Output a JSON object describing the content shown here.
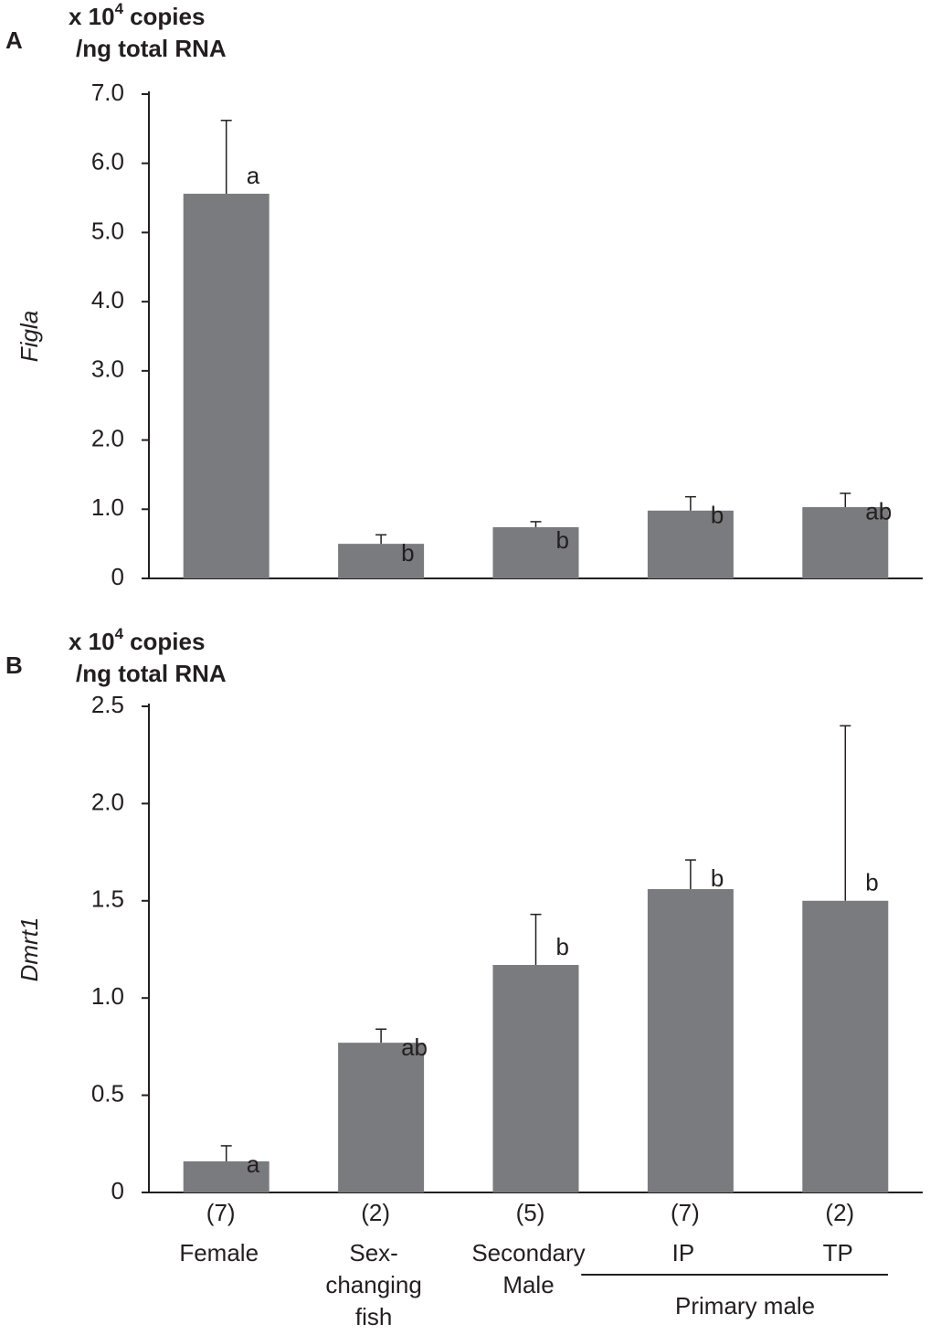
{
  "chart_data": [
    {
      "type": "bar",
      "panel": "A",
      "unit_label": {
        "prefix": "x 10",
        "superscript": "4",
        "suffix": "copies",
        "line2": "/ng total RNA"
      },
      "y_label": "Figla",
      "values": [
        5.56,
        0.5,
        0.74,
        0.98,
        1.03
      ],
      "errors": [
        1.06,
        0.13,
        0.08,
        0.2,
        0.2
      ],
      "letters": [
        "a",
        "b",
        "b",
        "b",
        "ab"
      ],
      "color": "#7a7b7f",
      "ylim": [
        0,
        7
      ],
      "yticks": [
        0,
        {
          "value": 1,
          "label": "1.0"
        },
        {
          "value": 2,
          "label": "2.0"
        },
        {
          "value": 3,
          "label": "3.0"
        },
        {
          "value": 4,
          "label": "4.0"
        },
        {
          "value": 5,
          "label": "5.0"
        },
        {
          "value": 6,
          "label": "6.0"
        },
        {
          "value": 7,
          "label": "7.0"
        }
      ]
    },
    {
      "type": "bar",
      "panel": "B",
      "unit_label": {
        "prefix": "x 10",
        "superscript": "4",
        "suffix": "copies",
        "line2": "/ng total RNA"
      },
      "y_label": "Dmrt1",
      "categories": [
        [
          "Female"
        ],
        [
          "Sex-",
          "changing",
          "fish"
        ],
        [
          "Secondary",
          "Male"
        ],
        [
          "IP"
        ],
        [
          "TP"
        ]
      ],
      "sample_sizes": [
        "(7)",
        "(2)",
        "(5)",
        "(7)",
        "(2)"
      ],
      "group_label": "Primary male",
      "values": [
        0.16,
        0.77,
        1.17,
        1.56,
        1.5
      ],
      "errors": [
        0.08,
        0.07,
        0.26,
        0.15,
        0.9
      ],
      "letters": [
        "a",
        "ab",
        "b",
        "b",
        "b"
      ],
      "color": "#7a7b7f",
      "ylim": [
        0,
        2.5
      ],
      "yticks": [
        0,
        0.5,
        {
          "value": 1,
          "label": "1.0"
        },
        1.5,
        {
          "value": 2,
          "label": "2.0"
        },
        2.5
      ]
    }
  ]
}
